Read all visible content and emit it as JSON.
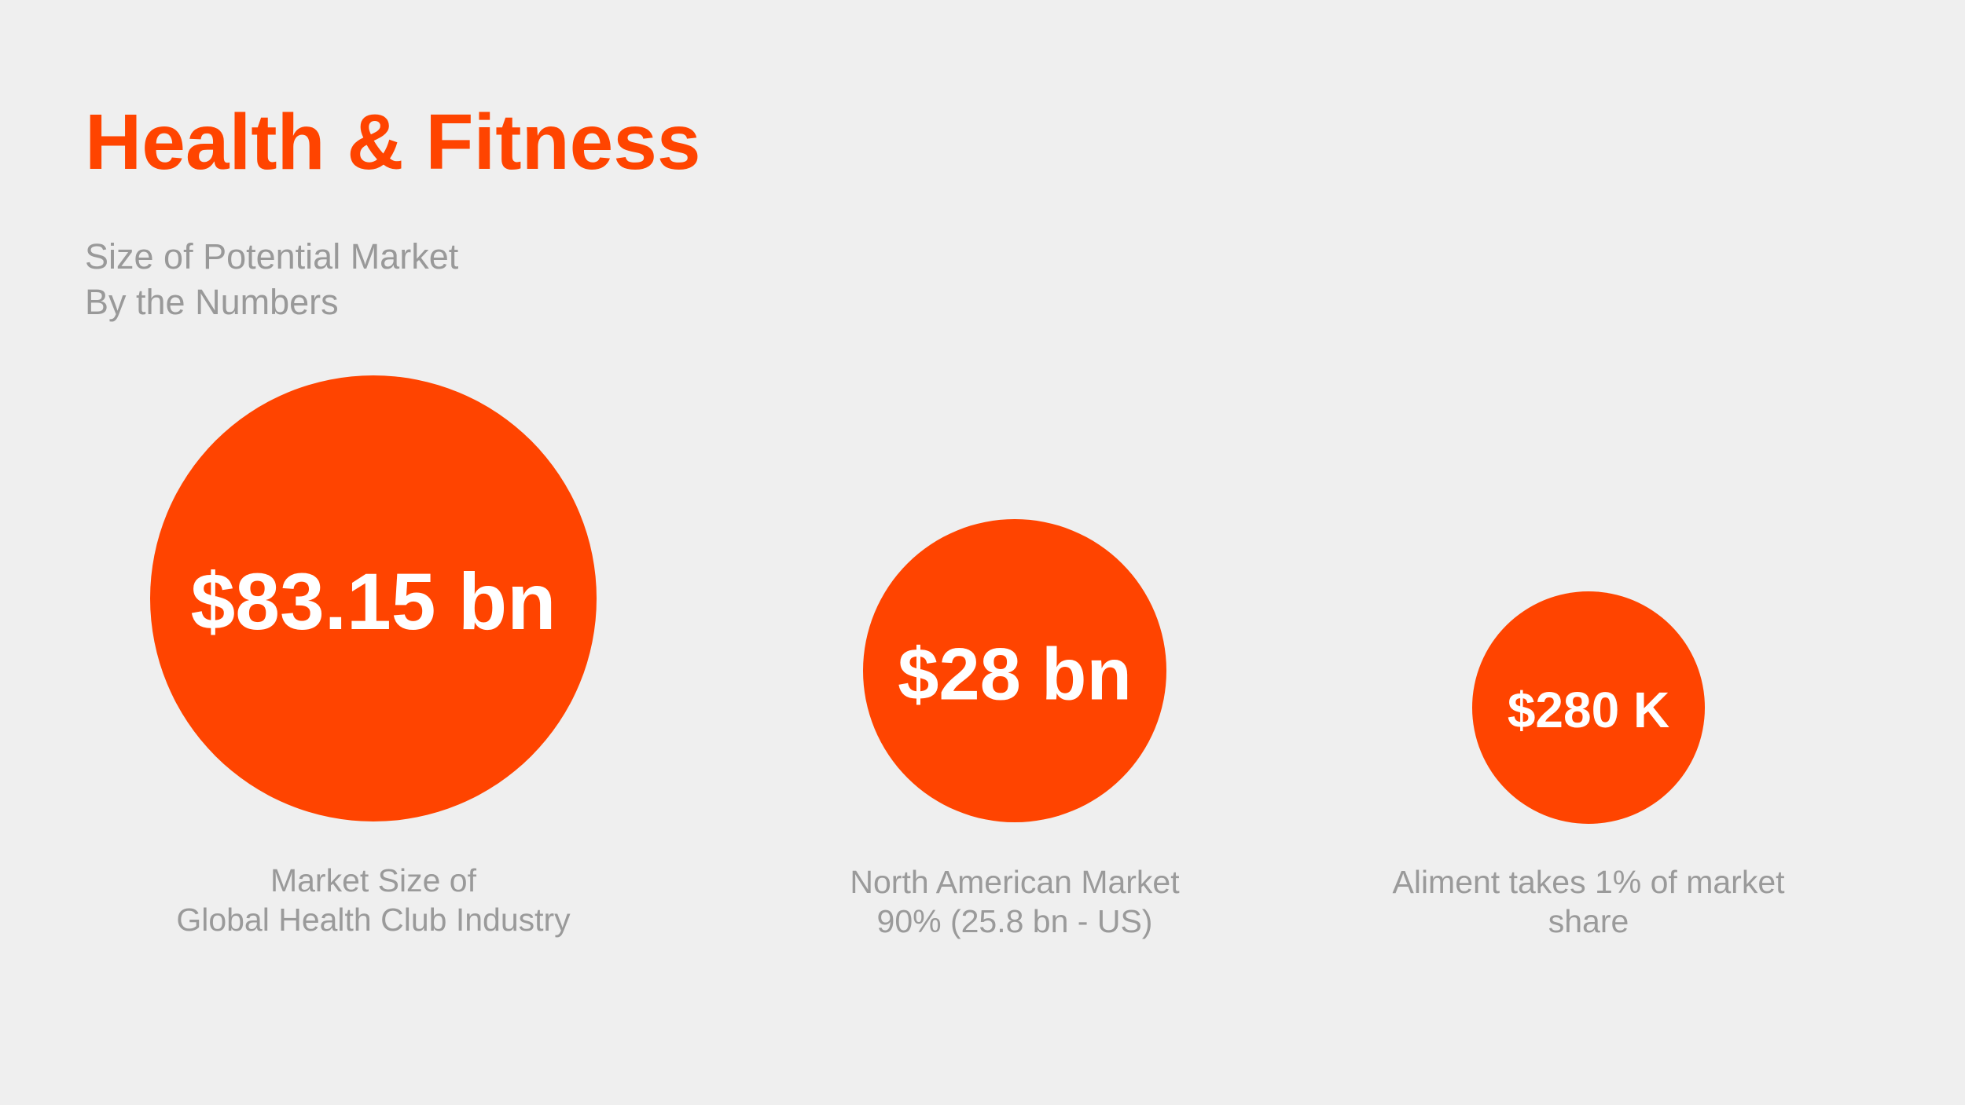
{
  "header": {
    "title": "Health & Fitness",
    "subtitle": [
      "Size of Potential Market",
      "By the Numbers"
    ]
  },
  "items": [
    {
      "value": "$83.15 bn",
      "caption": [
        "Market Size of",
        "Global Health Club Industry"
      ]
    },
    {
      "value": "$28 bn",
      "caption": [
        "North American Market",
        "90% (25.8 bn - US)"
      ]
    },
    {
      "value": "$280 K",
      "caption": [
        "Aliment takes 1% of market",
        "share"
      ]
    }
  ]
}
